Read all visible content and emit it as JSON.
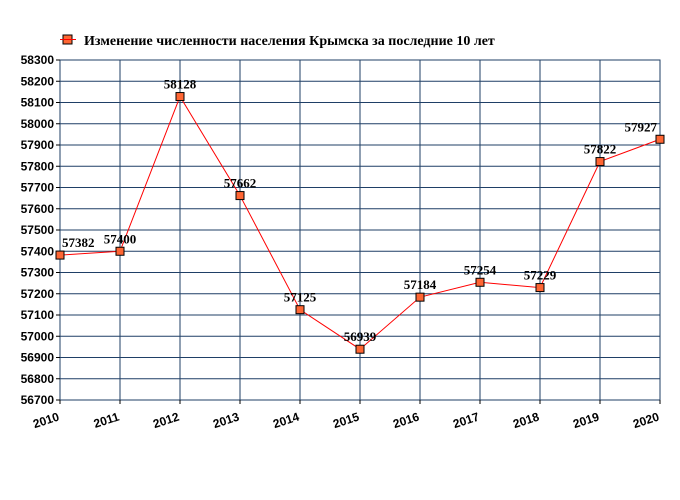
{
  "chart_data": {
    "type": "line",
    "title": "",
    "xlabel": "",
    "ylabel": "",
    "x": [
      "2010",
      "2011",
      "2012",
      "2013",
      "2014",
      "2015",
      "2016",
      "2017",
      "2018",
      "2019",
      "2020"
    ],
    "series": [
      {
        "name": "Изменение численности населения Крымска за последние 10 лет",
        "values": [
          57382,
          57400,
          58128,
          57662,
          57125,
          56939,
          57184,
          57254,
          57229,
          57822,
          57927
        ],
        "data_labels": [
          "57382",
          "57400",
          "58128",
          "57662",
          "57125",
          "56939",
          "57184",
          "57254",
          "57229",
          "57822",
          "57927"
        ]
      }
    ],
    "yticks": [
      "56700",
      "56800",
      "56900",
      "57000",
      "57100",
      "57200",
      "57300",
      "57400",
      "57500",
      "57600",
      "57700",
      "57800",
      "57900",
      "58000",
      "58100",
      "58200",
      "58300"
    ],
    "ylim": [
      56700,
      58300
    ],
    "grid": true,
    "legend_position": "top",
    "colors": {
      "line": "#ff0000",
      "marker_fill": "#ff6633",
      "marker_stroke": "#000000",
      "grid": "#1f3f66",
      "plot_border": "#1f3f66"
    }
  }
}
